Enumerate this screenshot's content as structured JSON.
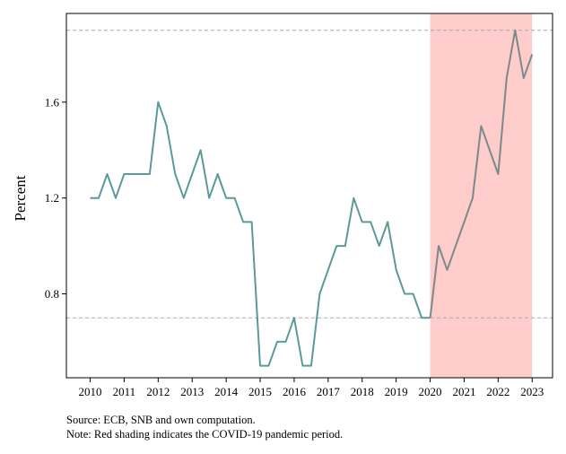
{
  "chart_data": {
    "type": "line",
    "title": "",
    "xlabel": "",
    "ylabel": "Percent",
    "xlim": [
      2009.3,
      2023.6
    ],
    "ylim": [
      0.45,
      1.97
    ],
    "x_ticks": [
      "2010",
      "2011",
      "2012",
      "2013",
      "2014",
      "2015",
      "2016",
      "2017",
      "2018",
      "2019",
      "2020",
      "2021",
      "2022",
      "2023"
    ],
    "y_ticks": [
      "0.8",
      "1.2",
      "1.6"
    ],
    "y_tick_values": [
      0.8,
      1.2,
      1.6
    ],
    "grid": false,
    "shaded_region": {
      "x_start": 2020.0,
      "x_end": 2023.0,
      "color": "#ffcccc"
    },
    "reference_lines": [
      {
        "y": 1.9,
        "color": "#aaaaaa",
        "style": "dashed"
      },
      {
        "y": 0.7,
        "color": "#aaaaaa",
        "style": "dashed"
      }
    ],
    "series": [
      {
        "color_before": "#5b9a99",
        "color_after": "#7a8a8a",
        "split_x": 2020.0,
        "x": [
          2010.0,
          2010.25,
          2010.5,
          2010.75,
          2011.0,
          2011.25,
          2011.5,
          2011.75,
          2012.0,
          2012.25,
          2012.5,
          2012.75,
          2013.0,
          2013.25,
          2013.5,
          2013.75,
          2014.0,
          2014.25,
          2014.5,
          2014.75,
          2015.0,
          2015.25,
          2015.5,
          2015.75,
          2016.0,
          2016.25,
          2016.5,
          2016.75,
          2017.0,
          2017.25,
          2017.5,
          2017.75,
          2018.0,
          2018.25,
          2018.5,
          2018.75,
          2019.0,
          2019.25,
          2019.5,
          2019.75,
          2020.0,
          2020.25,
          2020.5,
          2020.75,
          2021.0,
          2021.25,
          2021.5,
          2021.75,
          2022.0,
          2022.25,
          2022.5,
          2022.75,
          2023.0
        ],
        "y": [
          1.2,
          1.2,
          1.3,
          1.2,
          1.3,
          1.3,
          1.3,
          1.3,
          1.6,
          1.5,
          1.3,
          1.2,
          1.3,
          1.4,
          1.2,
          1.3,
          1.2,
          1.2,
          1.1,
          1.1,
          0.5,
          0.5,
          0.6,
          0.6,
          0.7,
          0.5,
          0.5,
          0.8,
          0.9,
          1.0,
          1.0,
          1.2,
          1.1,
          1.1,
          1.0,
          1.1,
          0.9,
          0.8,
          0.8,
          0.7,
          0.7,
          1.0,
          0.9,
          1.0,
          1.1,
          1.2,
          1.5,
          1.4,
          1.3,
          1.7,
          1.9,
          1.7,
          1.8
        ]
      }
    ]
  },
  "notes": {
    "source": "Source: ECB, SNB and own computation.",
    "shading": "Note: Red shading indicates the COVID-19 pandemic period."
  }
}
